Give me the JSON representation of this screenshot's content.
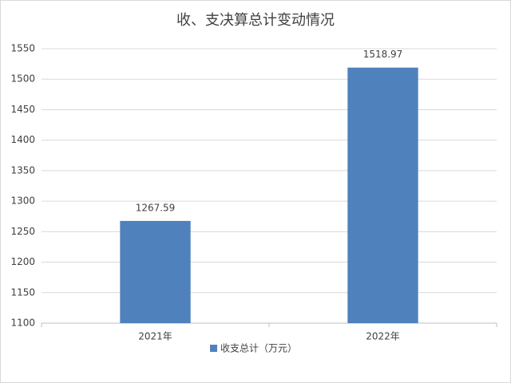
{
  "chart_data": {
    "type": "bar",
    "title": "收、支决算总计变动情况",
    "categories": [
      "2021年",
      "2022年"
    ],
    "series": [
      {
        "name": "收支总计（万元）",
        "color": "#4f81bd",
        "values": [
          1267.59,
          1518.97
        ]
      }
    ],
    "ylim": [
      1100,
      1550
    ],
    "yticks": [
      1100,
      1150,
      1200,
      1250,
      1300,
      1350,
      1400,
      1450,
      1500,
      1550
    ],
    "grid": true,
    "legend": "bottom"
  }
}
